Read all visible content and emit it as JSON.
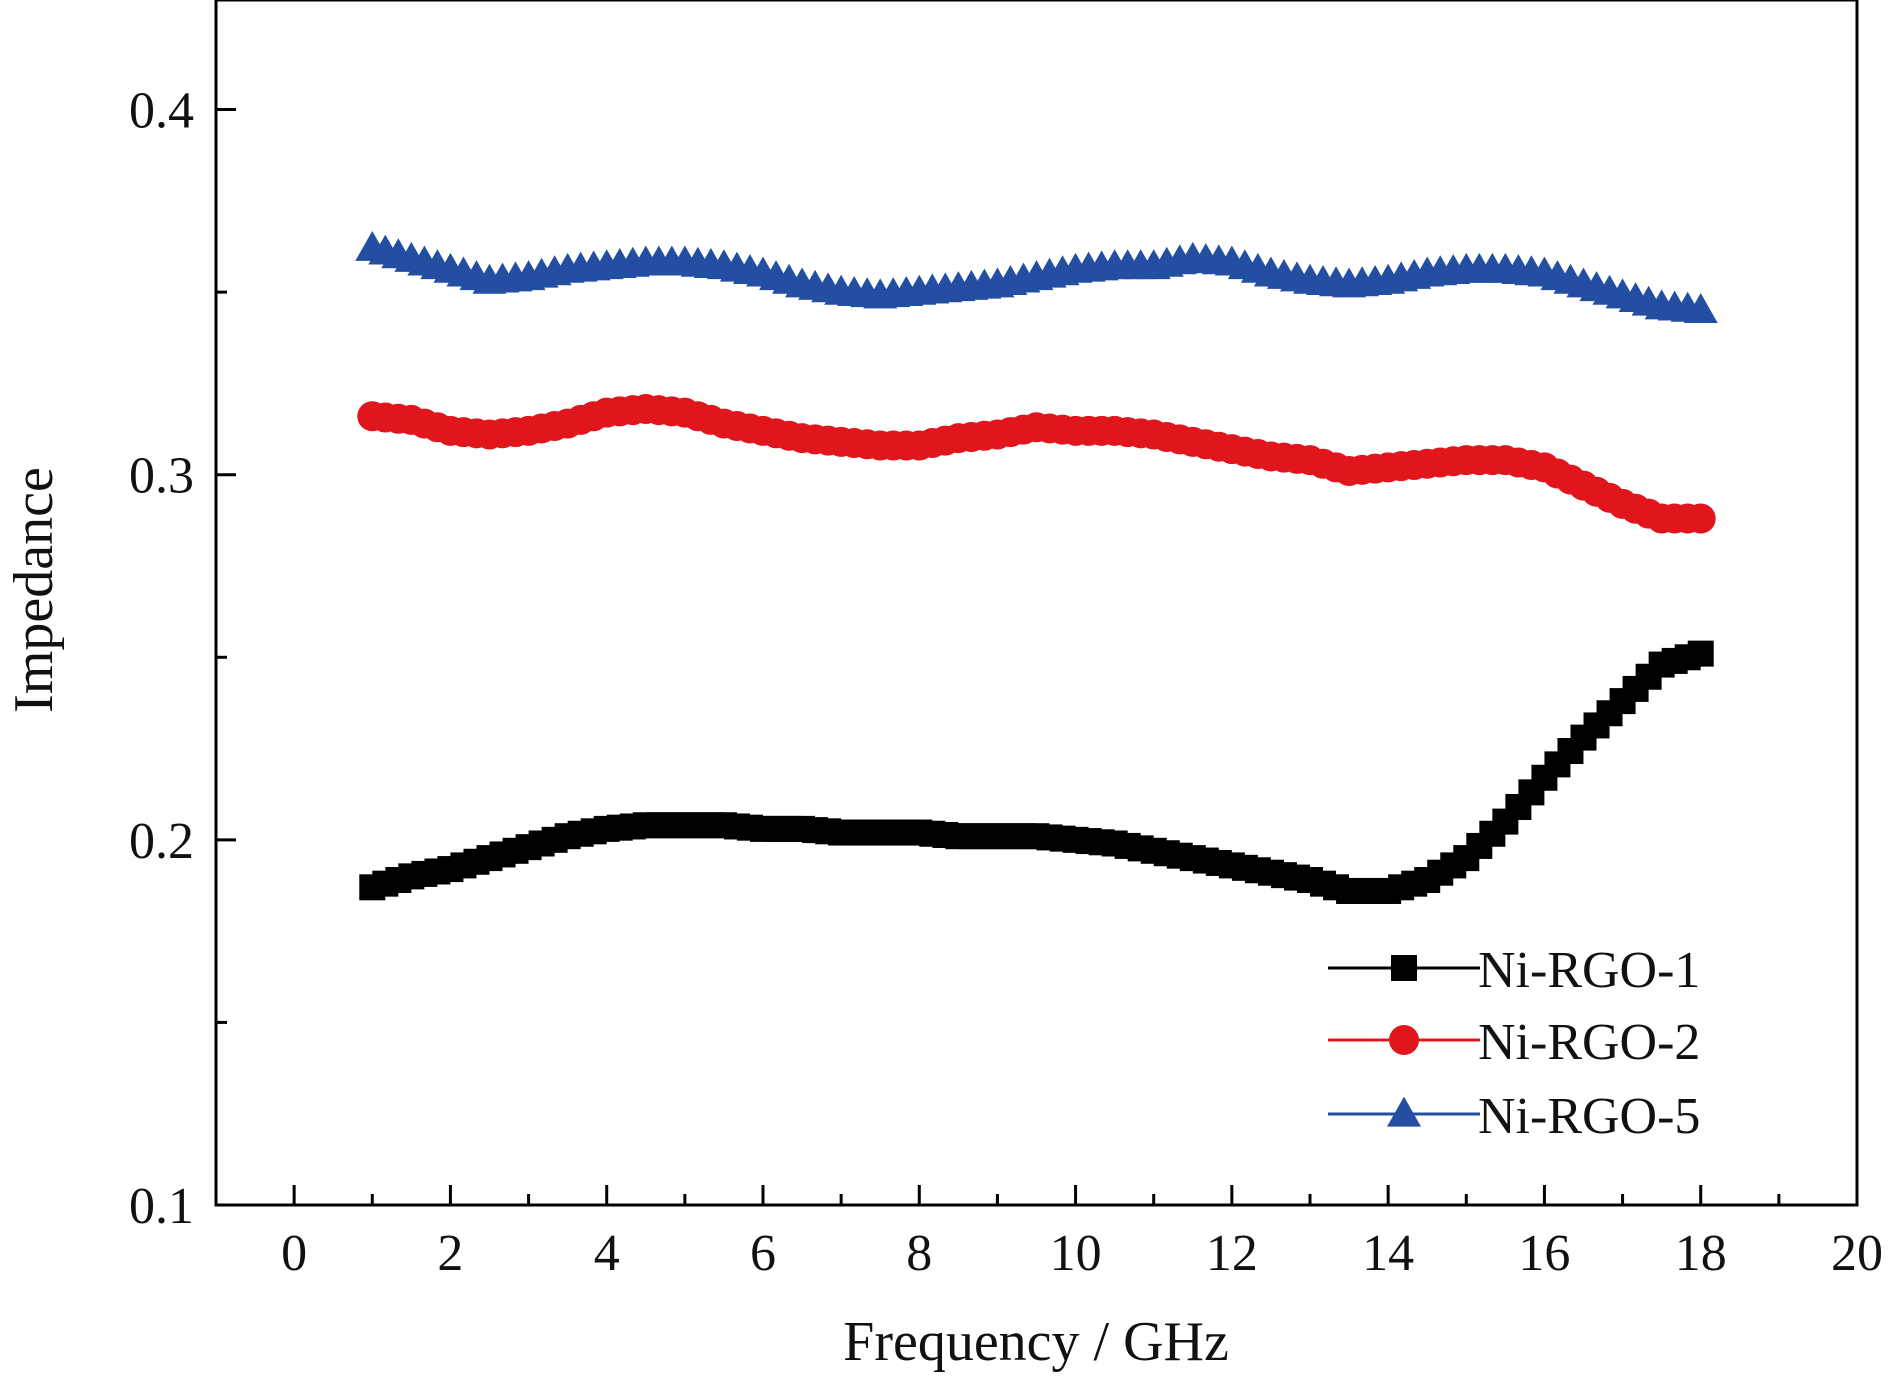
{
  "chart_data": {
    "type": "line",
    "title": "",
    "xlabel": "Frequency / GHz",
    "ylabel": "Impedance",
    "xlim": [
      -1,
      20
    ],
    "ylim": [
      0.1,
      0.43
    ],
    "x_ticks": [
      0,
      2,
      4,
      6,
      8,
      10,
      12,
      14,
      16,
      18,
      20
    ],
    "y_ticks": [
      0.1,
      0.2,
      0.3,
      0.4
    ],
    "y_minor_ticks": [
      0.15,
      0.25,
      0.35
    ],
    "grid": false,
    "legend_position": "bottom-right",
    "series": [
      {
        "name": "Ni-RGO-1",
        "color": "#000000",
        "marker": "square",
        "points": [
          [
            1.0,
            0.187
          ],
          [
            1.5,
            0.19
          ],
          [
            2.0,
            0.192
          ],
          [
            2.5,
            0.195
          ],
          [
            3.0,
            0.198
          ],
          [
            3.5,
            0.201
          ],
          [
            4.0,
            0.203
          ],
          [
            4.5,
            0.204
          ],
          [
            5.0,
            0.204
          ],
          [
            5.5,
            0.204
          ],
          [
            6.0,
            0.203
          ],
          [
            6.5,
            0.203
          ],
          [
            7.0,
            0.202
          ],
          [
            7.5,
            0.202
          ],
          [
            8.0,
            0.202
          ],
          [
            8.5,
            0.201
          ],
          [
            9.0,
            0.201
          ],
          [
            9.5,
            0.201
          ],
          [
            10.0,
            0.2
          ],
          [
            10.5,
            0.199
          ],
          [
            11.0,
            0.197
          ],
          [
            11.5,
            0.195
          ],
          [
            12.0,
            0.193
          ],
          [
            12.5,
            0.191
          ],
          [
            13.0,
            0.189
          ],
          [
            13.5,
            0.186
          ],
          [
            14.0,
            0.186
          ],
          [
            14.5,
            0.189
          ],
          [
            15.0,
            0.195
          ],
          [
            15.5,
            0.205
          ],
          [
            16.0,
            0.217
          ],
          [
            16.5,
            0.228
          ],
          [
            17.0,
            0.238
          ],
          [
            17.5,
            0.248
          ],
          [
            18.0,
            0.251
          ]
        ]
      },
      {
        "name": "Ni-RGO-2",
        "color": "#e0161c",
        "marker": "circle",
        "points": [
          [
            1.0,
            0.316
          ],
          [
            1.5,
            0.315
          ],
          [
            2.0,
            0.312
          ],
          [
            2.5,
            0.311
          ],
          [
            3.0,
            0.312
          ],
          [
            3.5,
            0.314
          ],
          [
            4.0,
            0.317
          ],
          [
            4.5,
            0.318
          ],
          [
            5.0,
            0.317
          ],
          [
            5.5,
            0.314
          ],
          [
            6.0,
            0.312
          ],
          [
            6.5,
            0.31
          ],
          [
            7.0,
            0.309
          ],
          [
            7.5,
            0.308
          ],
          [
            8.0,
            0.308
          ],
          [
            8.5,
            0.31
          ],
          [
            9.0,
            0.311
          ],
          [
            9.5,
            0.313
          ],
          [
            10.0,
            0.312
          ],
          [
            10.5,
            0.312
          ],
          [
            11.0,
            0.311
          ],
          [
            11.5,
            0.309
          ],
          [
            12.0,
            0.307
          ],
          [
            12.5,
            0.305
          ],
          [
            13.0,
            0.304
          ],
          [
            13.5,
            0.301
          ],
          [
            14.0,
            0.302
          ],
          [
            14.5,
            0.303
          ],
          [
            15.0,
            0.304
          ],
          [
            15.5,
            0.304
          ],
          [
            16.0,
            0.302
          ],
          [
            16.5,
            0.297
          ],
          [
            17.0,
            0.292
          ],
          [
            17.5,
            0.288
          ],
          [
            18.0,
            0.288
          ]
        ]
      },
      {
        "name": "Ni-RGO-5",
        "color": "#234ea1",
        "marker": "triangle",
        "points": [
          [
            1.0,
            0.362
          ],
          [
            1.5,
            0.359
          ],
          [
            2.0,
            0.356
          ],
          [
            2.5,
            0.353
          ],
          [
            3.0,
            0.354
          ],
          [
            3.5,
            0.356
          ],
          [
            4.0,
            0.357
          ],
          [
            4.5,
            0.358
          ],
          [
            5.0,
            0.358
          ],
          [
            5.5,
            0.357
          ],
          [
            6.0,
            0.355
          ],
          [
            6.5,
            0.352
          ],
          [
            7.0,
            0.35
          ],
          [
            7.5,
            0.349
          ],
          [
            8.0,
            0.35
          ],
          [
            8.5,
            0.351
          ],
          [
            9.0,
            0.352
          ],
          [
            9.5,
            0.354
          ],
          [
            10.0,
            0.356
          ],
          [
            10.5,
            0.357
          ],
          [
            11.0,
            0.357
          ],
          [
            11.5,
            0.359
          ],
          [
            12.0,
            0.358
          ],
          [
            12.5,
            0.355
          ],
          [
            13.0,
            0.353
          ],
          [
            13.5,
            0.352
          ],
          [
            14.0,
            0.353
          ],
          [
            14.5,
            0.355
          ],
          [
            15.0,
            0.356
          ],
          [
            15.5,
            0.356
          ],
          [
            16.0,
            0.355
          ],
          [
            16.5,
            0.352
          ],
          [
            17.0,
            0.349
          ],
          [
            17.5,
            0.346
          ],
          [
            18.0,
            0.345
          ]
        ]
      }
    ]
  }
}
